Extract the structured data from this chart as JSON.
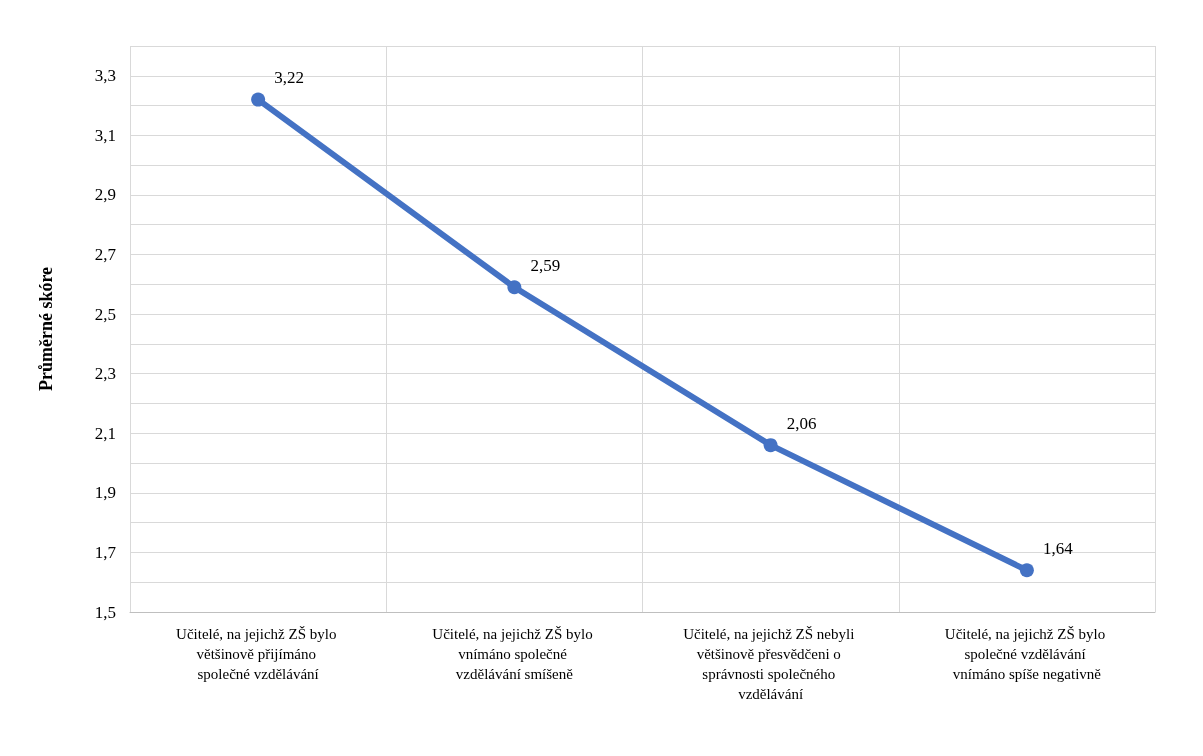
{
  "chart_data": {
    "type": "line",
    "ylabel": "Průměrné skóre",
    "categories": [
      "Učitelé, na jejichž ZŠ bylo většinově přijímáno společné vzdělávání",
      "Učitelé, na jejichž ZŠ bylo vnímáno společné vzdělávání smíšeně",
      "Učitelé, na jejichž ZŠ nebyli většinově přesvědčeni o správnosti společného vzdělávání",
      "Učitelé, na jejichž ZŠ bylo společné vzdělávání vnímáno spíše negativně"
    ],
    "values": [
      3.22,
      2.59,
      2.06,
      1.64
    ],
    "value_labels": [
      "3,22",
      "2,59",
      "2,06",
      "1,64"
    ],
    "color": "#4472c4",
    "marker": "circle",
    "line_style": "solid",
    "ylim": [
      1.5,
      3.4
    ],
    "yticks": [
      {
        "value": 1.5,
        "label": "1,5"
      },
      {
        "value": 1.6,
        "label": null
      },
      {
        "value": 1.7,
        "label": "1,7"
      },
      {
        "value": 1.8,
        "label": null
      },
      {
        "value": 1.9,
        "label": "1,9"
      },
      {
        "value": 2.0,
        "label": null
      },
      {
        "value": 2.1,
        "label": "2,1"
      },
      {
        "value": 2.2,
        "label": null
      },
      {
        "value": 2.3,
        "label": "2,3"
      },
      {
        "value": 2.4,
        "label": null
      },
      {
        "value": 2.5,
        "label": "2,5"
      },
      {
        "value": 2.6,
        "label": null
      },
      {
        "value": 2.7,
        "label": "2,7"
      },
      {
        "value": 2.8,
        "label": null
      },
      {
        "value": 2.9,
        "label": "2,9"
      },
      {
        "value": 3.0,
        "label": null
      },
      {
        "value": 3.1,
        "label": "3,1"
      },
      {
        "value": 3.2,
        "label": null
      },
      {
        "value": 3.3,
        "label": "3,3"
      },
      {
        "value": 3.4,
        "label": null
      }
    ],
    "grid": true
  }
}
